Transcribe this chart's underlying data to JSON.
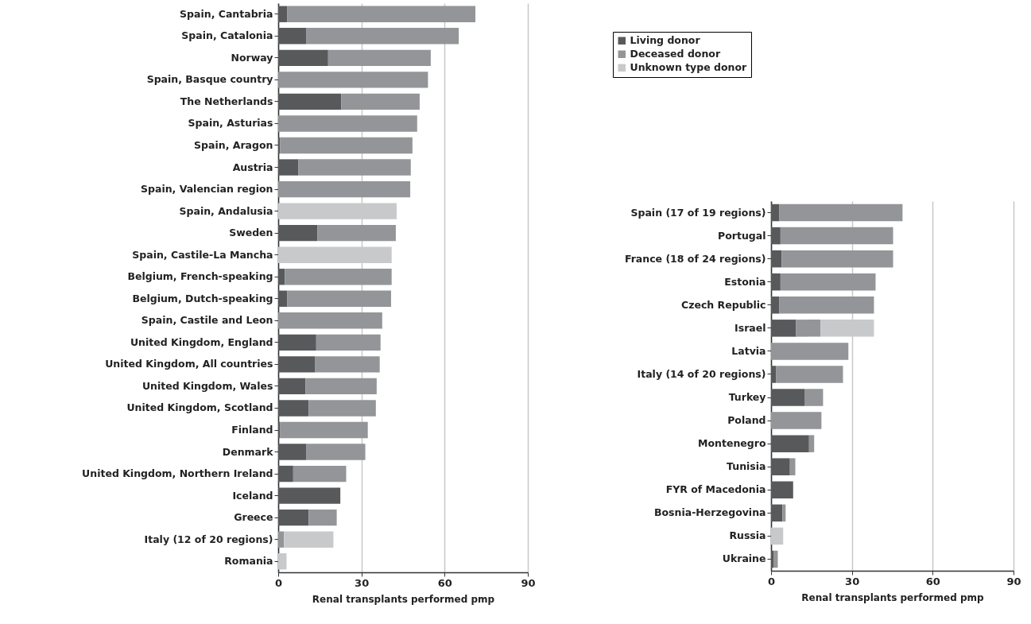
{
  "chart_data": [
    {
      "type": "bar",
      "orientation": "horizontal",
      "stacked": true,
      "xlabel": "Renal transplants performed pmp",
      "xlim": [
        0,
        90
      ],
      "xticks": [
        0,
        30,
        60,
        90
      ],
      "grid": "x",
      "legend": "top right",
      "categories": [
        "Spain, Cantabria",
        "Spain, Catalonia",
        "Norway",
        "Spain, Basque country",
        "The Netherlands",
        "Spain, Asturias",
        "Spain, Aragon",
        "Austria",
        "Spain, Valencian region",
        "Spain, Andalusia",
        "Sweden",
        "Spain, Castile-La Mancha",
        "Belgium, French-speaking",
        "Belgium, Dutch-speaking",
        "Spain, Castile and Leon",
        "United Kingdom, England",
        "United Kingdom, All countries",
        "United Kingdom, Wales",
        "United Kingdom, Scotland",
        "Finland",
        "Denmark",
        "United Kingdom, Northern Ireland",
        "Iceland",
        "Greece",
        "Italy (12 of 20 regions)",
        "Romania"
      ],
      "series": [
        {
          "name": "Living donor",
          "color": "#58595b",
          "values": [
            3.3,
            10.2,
            18.0,
            null,
            22.7,
            null,
            0.7,
            7.2,
            null,
            null,
            14.1,
            null,
            2.4,
            3.2,
            null,
            13.7,
            13.2,
            9.8,
            11.0,
            0.6,
            10.2,
            5.4,
            22.4,
            11.0,
            null,
            null
          ]
        },
        {
          "name": "Deceased donor",
          "color": "#939598",
          "values": [
            67.8,
            54.9,
            37.0,
            54.0,
            28.3,
            50.1,
            47.7,
            40.6,
            47.6,
            null,
            28.3,
            null,
            38.5,
            37.5,
            37.5,
            23.2,
            23.4,
            25.7,
            24.2,
            31.7,
            21.2,
            19.1,
            null,
            10.1,
            2.1,
            null
          ]
        },
        {
          "name": "Unknown type donor",
          "color": "#c8c9cb",
          "values": [
            null,
            null,
            null,
            null,
            null,
            null,
            null,
            null,
            null,
            42.7,
            null,
            40.9,
            null,
            null,
            null,
            null,
            null,
            null,
            null,
            null,
            null,
            null,
            null,
            null,
            17.8,
            3.0
          ]
        }
      ]
    },
    {
      "type": "bar",
      "orientation": "horizontal",
      "stacked": true,
      "xlabel": "Renal transplants performed pmp",
      "xlim": [
        0,
        90
      ],
      "xticks": [
        0,
        30,
        60,
        90
      ],
      "grid": "x",
      "categories": [
        "Spain (17 of 19 regions)",
        "Portugal",
        "France (18 of 24 regions)",
        "Estonia",
        "Czech Republic",
        "Israel",
        "Latvia",
        "Italy (14 of 20 regions)",
        "Turkey",
        "Poland",
        "Montenegro",
        "Tunisia",
        "FYR of Macedonia",
        "Bosnia-Herzegovina",
        "Russia",
        "Ukraine"
      ],
      "series": [
        {
          "color": "#58595b",
          "values": [
            3.1,
            3.5,
            3.9,
            3.5,
            3.1,
            9.3,
            null,
            1.8,
            12.4,
            null,
            14.1,
            7.0,
            8.2,
            4.2,
            null,
            0.9
          ]
        },
        {
          "color": "#939598",
          "values": [
            45.7,
            41.8,
            41.4,
            35.3,
            35.1,
            9.1,
            28.7,
            24.9,
            6.9,
            18.7,
            1.9,
            2.0,
            null,
            1.2,
            null,
            1.6
          ]
        },
        {
          "color": "#c8c9cb",
          "values": [
            null,
            null,
            null,
            null,
            null,
            19.8,
            null,
            null,
            null,
            null,
            null,
            null,
            null,
            null,
            4.5,
            null
          ]
        }
      ]
    }
  ]
}
